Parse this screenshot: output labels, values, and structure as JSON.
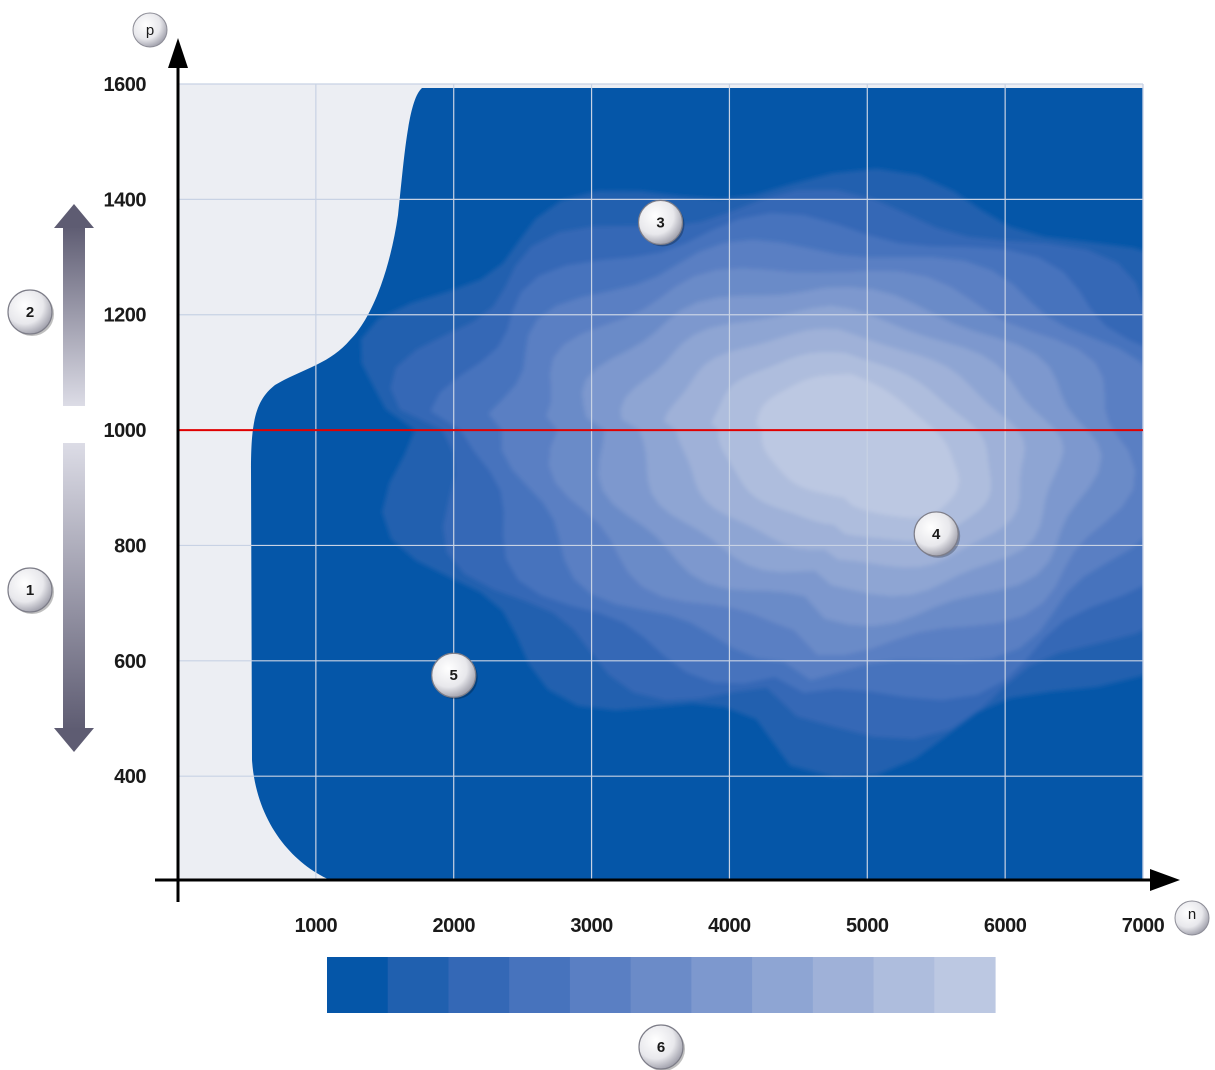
{
  "chart_data": {
    "type": "heatmap",
    "title": "",
    "xlabel": "n",
    "ylabel": "p",
    "xlim": [
      0,
      7000
    ],
    "ylim": [
      220,
      1600
    ],
    "x_ticks": [
      1000,
      2000,
      3000,
      4000,
      5000,
      6000,
      7000
    ],
    "y_ticks": [
      400,
      600,
      800,
      1000,
      1200,
      1400,
      1600
    ],
    "x_tick_labels": [
      "1000",
      "2000",
      "3000",
      "4000",
      "5000",
      "6000",
      "7000"
    ],
    "y_tick_labels": [
      "400",
      "600",
      "800",
      "1000",
      "1200",
      "1400",
      "1600"
    ],
    "grid": true,
    "reference_line": {
      "y": 1000,
      "color": "#e00000"
    },
    "colors": {
      "scale": [
        "#0556a8",
        "#2060af",
        "#3468b6",
        "#4773bd",
        "#5a7fc3",
        "#6b8bc8",
        "#7d98ce",
        "#8ea5d3",
        "#9fb1d8",
        "#aebddd",
        "#bcc8e2"
      ],
      "background": "#eceef3",
      "grid": "#c8d2e4",
      "reference_line": "#e00000"
    },
    "annotations": [
      {
        "label": "1",
        "meaning": "arrow",
        "range": [
          400,
          1000
        ]
      },
      {
        "label": "2",
        "meaning": "arrow",
        "range": [
          1000,
          1400
        ]
      },
      {
        "label": "3",
        "x": 3500,
        "y": 1360
      },
      {
        "label": "4",
        "x": 5500,
        "y": 820
      },
      {
        "label": "5",
        "x": 2000,
        "y": 575
      },
      {
        "label": "6",
        "meaning": "legend"
      }
    ],
    "legend": {
      "type": "color-scale",
      "position": "bottom",
      "steps": 11
    }
  }
}
